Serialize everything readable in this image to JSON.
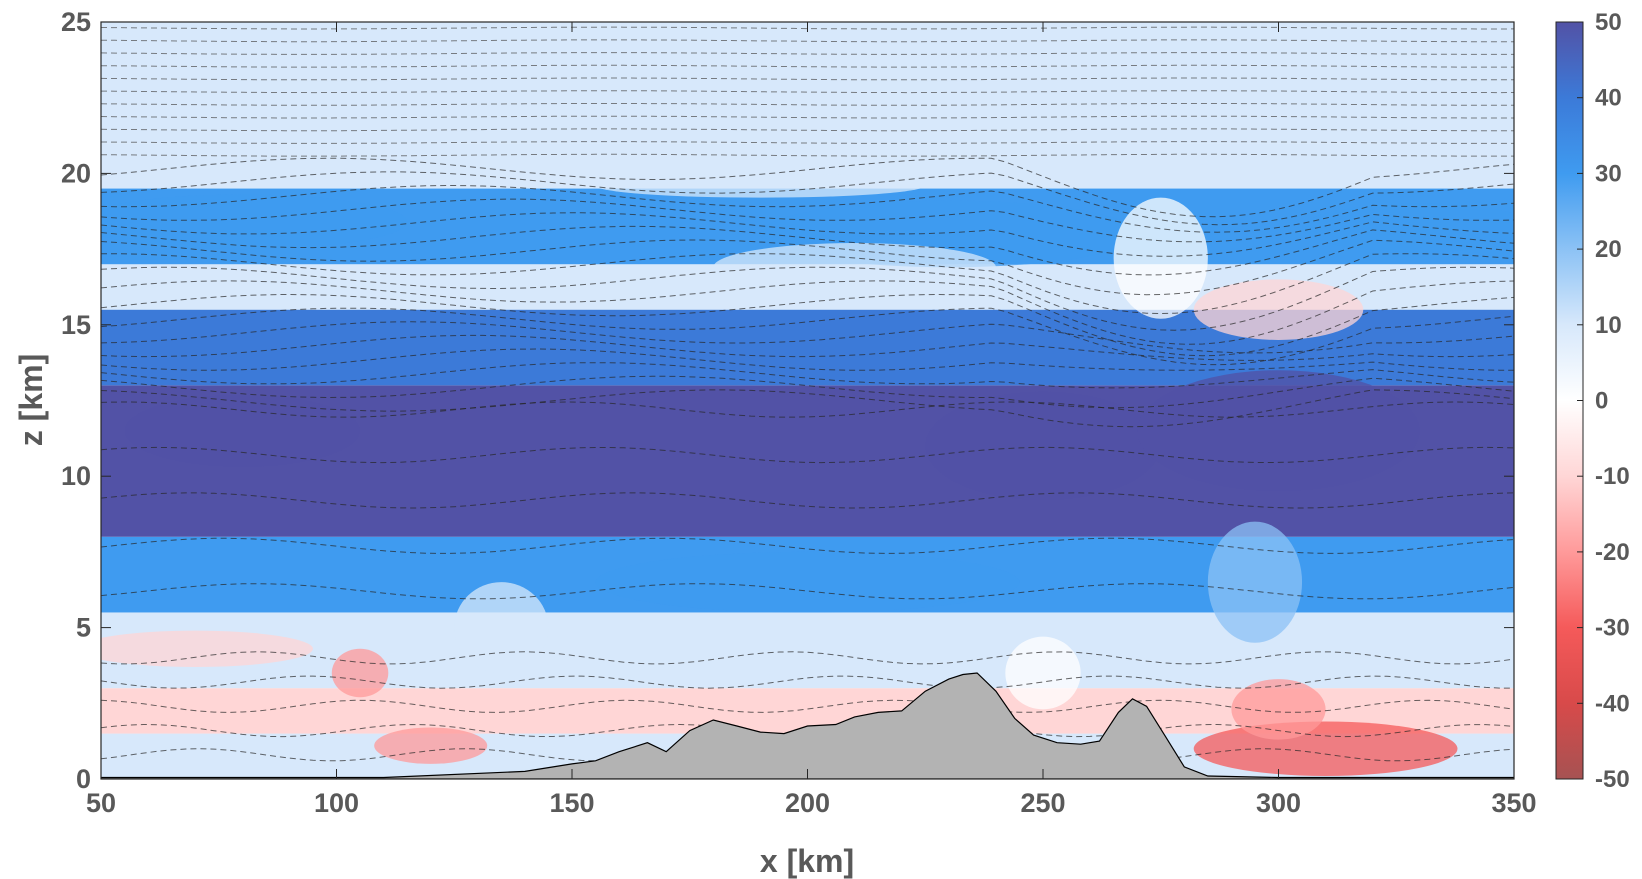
{
  "chart_data": {
    "type": "heatmap",
    "title": "",
    "xlabel": "x [km]",
    "ylabel": "z [km]",
    "xlim": [
      50,
      350
    ],
    "ylim": [
      0,
      25
    ],
    "xticks": [
      "50",
      "100",
      "150",
      "200",
      "250",
      "300",
      "350"
    ],
    "yticks": [
      "0",
      "5",
      "10",
      "15",
      "20",
      "25"
    ],
    "colorbar": {
      "ticks": [
        "50",
        "40",
        "30",
        "20",
        "10",
        "0",
        "-10",
        "-20",
        "-30",
        "-40",
        "-50"
      ],
      "range": [
        -50,
        50
      ],
      "colors": [
        "#5252a6",
        "#3c7ad8",
        "#3f9bf0",
        "#8cc2f5",
        "#d7e8fb",
        "#ffffff",
        "#ffd6d6",
        "#ff9a9a",
        "#f55a5a",
        "#d84a4a",
        "#a65252"
      ]
    },
    "contour_style": "dashed black isentropes",
    "terrain": {
      "color": "#b3b3b3",
      "profile": [
        [
          50,
          0.05
        ],
        [
          110,
          0.05
        ],
        [
          140,
          0.25
        ],
        [
          150,
          0.5
        ],
        [
          155,
          0.6
        ],
        [
          160,
          0.9
        ],
        [
          166,
          1.2
        ],
        [
          170,
          0.9
        ],
        [
          175,
          1.6
        ],
        [
          180,
          1.95
        ],
        [
          185,
          1.75
        ],
        [
          190,
          1.55
        ],
        [
          195,
          1.5
        ],
        [
          200,
          1.75
        ],
        [
          206,
          1.8
        ],
        [
          210,
          2.05
        ],
        [
          215,
          2.2
        ],
        [
          220,
          2.25
        ],
        [
          225,
          2.9
        ],
        [
          230,
          3.3
        ],
        [
          233,
          3.45
        ],
        [
          236,
          3.5
        ],
        [
          240,
          2.9
        ],
        [
          244,
          2.0
        ],
        [
          248,
          1.45
        ],
        [
          253,
          1.2
        ],
        [
          258,
          1.15
        ],
        [
          262,
          1.25
        ],
        [
          266,
          2.2
        ],
        [
          269,
          2.65
        ],
        [
          272,
          2.4
        ],
        [
          276,
          1.4
        ],
        [
          280,
          0.4
        ],
        [
          285,
          0.1
        ],
        [
          300,
          0.05
        ],
        [
          350,
          0.05
        ]
      ]
    },
    "field_bands": [
      {
        "z": [
          0,
          1.5
        ],
        "value": 10
      },
      {
        "z": [
          1.5,
          3
        ],
        "value": -10
      },
      {
        "z": [
          3,
          5.5
        ],
        "value": 10
      },
      {
        "z": [
          5.5,
          8
        ],
        "value": 30
      },
      {
        "z": [
          8,
          13
        ],
        "value": 45
      },
      {
        "z": [
          13,
          15.5
        ],
        "value": 35
      },
      {
        "z": [
          15.5,
          17
        ],
        "value": 5
      },
      {
        "z": [
          17,
          19.5
        ],
        "value": 25
      },
      {
        "z": [
          19.5,
          21
        ],
        "value": 5
      },
      {
        "z": [
          21,
          25
        ],
        "value": 10
      }
    ]
  }
}
